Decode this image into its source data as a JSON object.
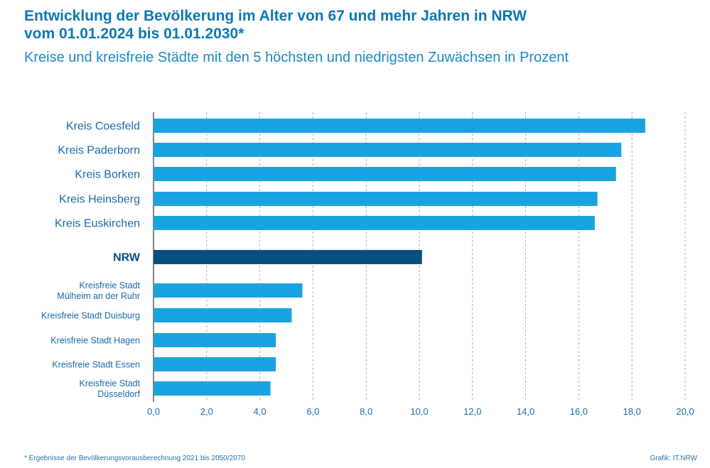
{
  "header": {
    "title_line1": "Entwicklung der Bevölkerung im Alter von 67 und mehr Jahren in NRW",
    "title_line2": "vom 01.01.2024 bis 01.01.2030*",
    "subtitle": "Kreise und kreisfreie Städte mit den 5 höchsten und niedrigsten Zuwächsen in Prozent"
  },
  "footer": {
    "footnote": "* Ergebnisse der Bevölkerungsvorausberechnung 2021 bis 2050/2070",
    "credit": "Grafik: IT.NRW"
  },
  "colors": {
    "bar": "#1aa3e0",
    "highlight": "#0a4f82",
    "label": "#1b6aa5",
    "grid": "#9a9a9a"
  },
  "chart_data": {
    "type": "bar",
    "orientation": "horizontal",
    "categories": [
      [
        "Kreis Coesfeld"
      ],
      [
        "Kreis Paderborn"
      ],
      [
        "Kreis Borken"
      ],
      [
        "Kreis Heinsberg"
      ],
      [
        "Kreis Euskirchen"
      ],
      [
        "NRW"
      ],
      [
        "Kreisfreie Stadt",
        "Mülheim an der Ruhr"
      ],
      [
        "Kreisfreie Stadt Duisburg"
      ],
      [
        "Kreisfreie Stadt Hagen"
      ],
      [
        "Kreisfreie Stadt Essen"
      ],
      [
        "Kreisfreie Stadt",
        "Düsseldorf"
      ]
    ],
    "values": [
      18.5,
      17.6,
      17.4,
      16.7,
      16.6,
      10.1,
      5.6,
      5.2,
      4.6,
      4.6,
      4.4
    ],
    "highlight_category": "NRW",
    "xlim": [
      0,
      20
    ],
    "xticks": [
      "0,0",
      "2,0",
      "4,0",
      "6,0",
      "8,0",
      "10,0",
      "12,0",
      "14,0",
      "16,0",
      "18,0",
      "20,0"
    ],
    "grid": "vertical dashed"
  }
}
